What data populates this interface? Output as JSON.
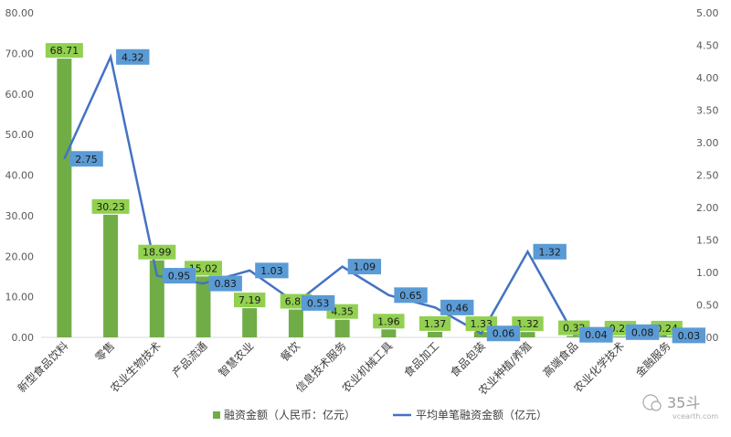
{
  "chart_data": {
    "type": "bar",
    "categories": [
      "新型食品饮料",
      "零售",
      "农业生物技术",
      "产品流通",
      "智慧农业",
      "餐饮",
      "信息技术服务",
      "农业机械工具",
      "食品加工",
      "食品包装",
      "农业种植/养殖",
      "高端食品",
      "农业化学技术",
      "金融服务"
    ],
    "series": [
      {
        "name": "融资金额（人民币：亿元）",
        "type": "bar",
        "axis": "left",
        "color": "#70AD47",
        "label_fill": "#92D050",
        "values": [
          68.71,
          30.23,
          18.99,
          15.02,
          7.19,
          6.86,
          4.35,
          1.96,
          1.37,
          1.33,
          1.32,
          0.32,
          0.24,
          0.24
        ]
      },
      {
        "name": "平均单笔融资金额（亿元）",
        "type": "line",
        "axis": "right",
        "color": "#4472C4",
        "label_fill": "#5B9BD5",
        "values": [
          2.75,
          4.32,
          0.95,
          0.83,
          1.03,
          0.53,
          1.09,
          0.65,
          0.46,
          0.06,
          1.32,
          0.04,
          0.08,
          0.03
        ]
      }
    ],
    "bar_labels": [
      "68.71",
      "30.23",
      "18.99",
      "15.02",
      "7.19",
      "6.86",
      "4.35",
      "1.96",
      "1.37",
      "1.33",
      "1.32",
      "0.32",
      "0.24",
      "0.24"
    ],
    "line_labels": [
      "2.75",
      "4.32",
      "0.95",
      "0.83",
      "1.03",
      "0.53",
      "1.09",
      "0.65",
      "0.46",
      "0.06",
      "1.32",
      "0.04",
      "0.08",
      "0.03"
    ],
    "y_left": {
      "min": 0,
      "max": 80,
      "ticks": [
        "0.00",
        "10.00",
        "20.00",
        "30.00",
        "40.00",
        "50.00",
        "60.00",
        "70.00",
        "80.00"
      ]
    },
    "y_right": {
      "min": 0,
      "max": 5,
      "ticks": [
        "0.00",
        "0.50",
        "1.00",
        "1.50",
        "2.00",
        "2.50",
        "3.00",
        "3.50",
        "4.00",
        "4.50",
        "5.00"
      ]
    },
    "grid": false,
    "legend_position": "bottom"
  },
  "watermark": {
    "text": "35斗",
    "subtext": "vcearth.com"
  }
}
